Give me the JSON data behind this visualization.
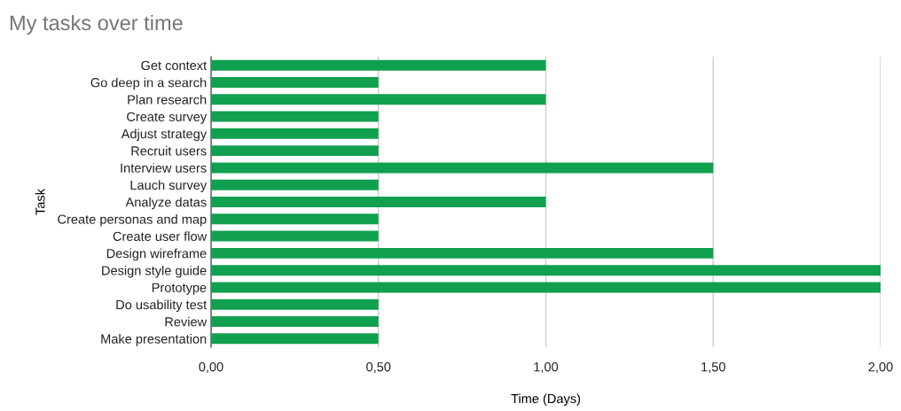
{
  "chart_data": {
    "type": "bar",
    "orientation": "horizontal",
    "title": "My tasks over time",
    "xlabel": "Time (Days)",
    "ylabel": "Task",
    "categories": [
      "Get context",
      "Go deep in a search",
      "Plan research",
      "Create survey",
      "Adjust strategy",
      "Recruit users",
      "Interview users",
      "Lauch survey",
      "Analyze datas",
      "Create personas and map",
      "Create user flow",
      "Design wireframe",
      "Design style guide",
      "Prototype",
      "Do usability test",
      "Review",
      "Make presentation"
    ],
    "values": [
      1,
      0.5,
      1,
      0.5,
      0.5,
      0.5,
      1.5,
      0.5,
      1,
      0.5,
      0.5,
      1.5,
      2,
      2,
      0.5,
      0.5,
      0.5
    ],
    "color": "#11a04f",
    "xlim": [
      0,
      2
    ],
    "xticks": [
      {
        "value": 0,
        "label": "0,00"
      },
      {
        "value": 0.5,
        "label": "0,50"
      },
      {
        "value": 1,
        "label": "1,00"
      },
      {
        "value": 1.5,
        "label": "1,50"
      },
      {
        "value": 2,
        "label": "2,00"
      }
    ],
    "grid": "x",
    "legend": false
  }
}
